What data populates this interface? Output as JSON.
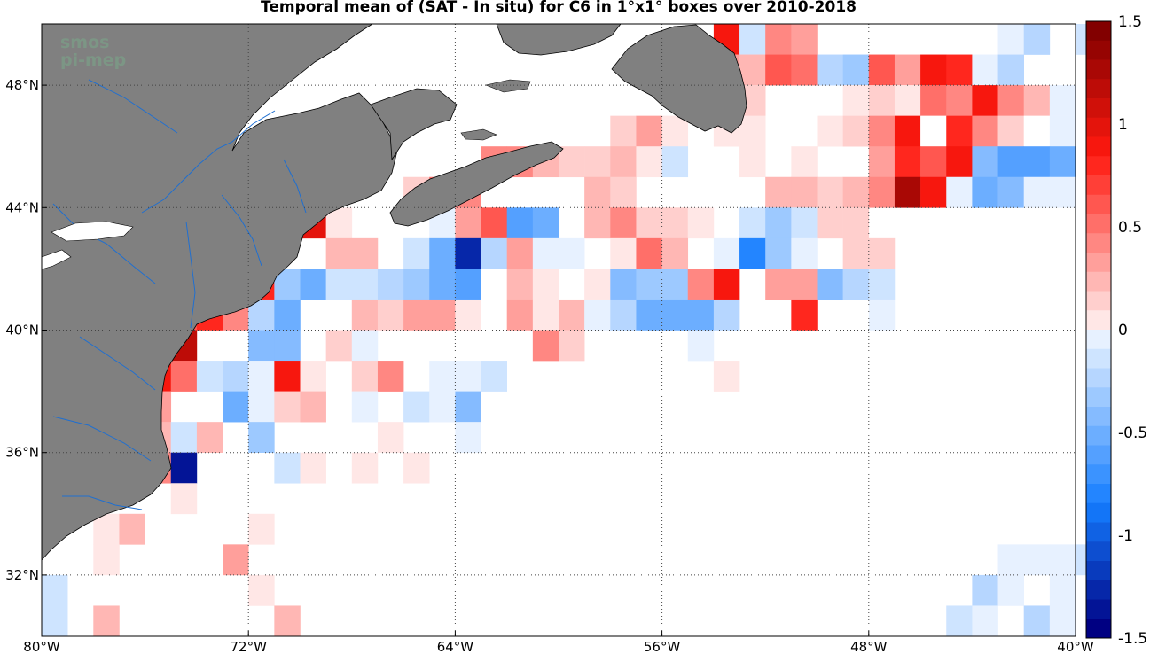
{
  "title": "Temporal mean of (SAT - In situ) for C6 in 1°x1° boxes over 2010-2018",
  "watermark": [
    "smos",
    "pi-mep"
  ],
  "colors": {
    "land": "#808080",
    "rivers": "#1f6fd0",
    "grid": "#444444"
  },
  "chart_data": {
    "type": "heatmap",
    "title": "Temporal mean of (SAT - In situ) for C6 in 1°x1° boxes over 2010-2018",
    "x_range": [
      -80,
      -40
    ],
    "y_range": [
      30,
      50
    ],
    "x_ticks": [
      {
        "v": -80,
        "label": "80°W"
      },
      {
        "v": -72,
        "label": "72°W"
      },
      {
        "v": -64,
        "label": "64°W"
      },
      {
        "v": -56,
        "label": "56°W"
      },
      {
        "v": -48,
        "label": "48°W"
      },
      {
        "v": -40,
        "label": "40°W"
      }
    ],
    "y_ticks": [
      {
        "v": 32,
        "label": "32°N"
      },
      {
        "v": 36,
        "label": "36°N"
      },
      {
        "v": 40,
        "label": "40°N"
      },
      {
        "v": 44,
        "label": "44°N"
      },
      {
        "v": 48,
        "label": "48°N"
      }
    ],
    "colorbar": {
      "range": [
        -1.5,
        1.5
      ],
      "ticks": [
        {
          "v": 1.5,
          "label": "1.5"
        },
        {
          "v": 1,
          "label": "1"
        },
        {
          "v": 0.5,
          "label": "0.5"
        },
        {
          "v": 0,
          "label": "0"
        },
        {
          "v": -0.5,
          "label": "-0.5"
        },
        {
          "v": -1,
          "label": "-1"
        },
        {
          "v": -1.5,
          "label": "-1.5"
        }
      ]
    },
    "cells": [
      [
        -54,
        49,
        0.9
      ],
      [
        -53,
        49,
        -0.2
      ],
      [
        -52,
        49,
        0.5
      ],
      [
        -51,
        49,
        0.4
      ],
      [
        -43,
        49,
        -0.1
      ],
      [
        -42,
        49,
        -0.3
      ],
      [
        -40,
        49,
        -0.2
      ],
      [
        -54,
        48,
        0.4
      ],
      [
        -53,
        48,
        0.3
      ],
      [
        -52,
        48,
        0.7
      ],
      [
        -51,
        48,
        0.6
      ],
      [
        -50,
        48,
        -0.3
      ],
      [
        -49,
        48,
        -0.4
      ],
      [
        -48,
        48,
        0.7
      ],
      [
        -47,
        48,
        0.4
      ],
      [
        -46,
        48,
        0.9
      ],
      [
        -45,
        48,
        0.8
      ],
      [
        -44,
        48,
        -0.1
      ],
      [
        -43,
        48,
        -0.3
      ],
      [
        -53,
        47,
        0.2
      ],
      [
        -49,
        47,
        0.1
      ],
      [
        -48,
        47,
        0.2
      ],
      [
        -47,
        47,
        0.1
      ],
      [
        -46,
        47,
        0.6
      ],
      [
        -45,
        47,
        0.5
      ],
      [
        -44,
        47,
        0.9
      ],
      [
        -43,
        47,
        0.5
      ],
      [
        -42,
        47,
        0.3
      ],
      [
        -41,
        47,
        -0.1
      ],
      [
        -58,
        46,
        0.2
      ],
      [
        -57,
        46,
        0.4
      ],
      [
        -56,
        46,
        0.1
      ],
      [
        -54,
        46,
        0.1
      ],
      [
        -53,
        46,
        0.1
      ],
      [
        -50,
        46,
        0.1
      ],
      [
        -49,
        46,
        0.2
      ],
      [
        -48,
        46,
        0.5
      ],
      [
        -47,
        46,
        0.9
      ],
      [
        -46,
        46,
        0.0
      ],
      [
        -45,
        46,
        0.8
      ],
      [
        -44,
        46,
        0.5
      ],
      [
        -43,
        46,
        0.2
      ],
      [
        -42,
        46,
        0.0
      ],
      [
        -41,
        46,
        -0.1
      ],
      [
        -63,
        45,
        0.5
      ],
      [
        -62,
        45,
        0.5
      ],
      [
        -61,
        45,
        0.3
      ],
      [
        -60,
        45,
        0.2
      ],
      [
        -59,
        45,
        0.2
      ],
      [
        -58,
        45,
        0.3
      ],
      [
        -57,
        45,
        0.1
      ],
      [
        -56,
        45,
        -0.2
      ],
      [
        -53,
        45,
        0.1
      ],
      [
        -51,
        45,
        0.1
      ],
      [
        -48,
        45,
        0.4
      ],
      [
        -47,
        45,
        0.8
      ],
      [
        -46,
        45,
        0.7
      ],
      [
        -45,
        45,
        0.9
      ],
      [
        -44,
        45,
        -0.5
      ],
      [
        -43,
        45,
        -0.7
      ],
      [
        -42,
        45,
        -0.7
      ],
      [
        -41,
        45,
        -0.6
      ],
      [
        -66,
        44,
        0.2
      ],
      [
        -65,
        44,
        0.6
      ],
      [
        -64,
        44,
        0.5
      ],
      [
        -59,
        44,
        0.3
      ],
      [
        -58,
        44,
        0.2
      ],
      [
        -52,
        44,
        0.3
      ],
      [
        -51,
        44,
        0.3
      ],
      [
        -50,
        44,
        0.2
      ],
      [
        -49,
        44,
        0.3
      ],
      [
        -48,
        44,
        0.5
      ],
      [
        -47,
        44,
        1.3
      ],
      [
        -46,
        44,
        0.9
      ],
      [
        -45,
        44,
        -0.1
      ],
      [
        -44,
        44,
        -0.6
      ],
      [
        -43,
        44,
        -0.5
      ],
      [
        -42,
        44,
        -0.1
      ],
      [
        -41,
        44,
        -0.1
      ],
      [
        -74,
        43,
        -0.6
      ],
      [
        -73,
        43,
        -0.3
      ],
      [
        -72,
        43,
        0.2
      ],
      [
        -70,
        43,
        1.0
      ],
      [
        -69,
        43,
        0.1
      ],
      [
        -65,
        43,
        -0.1
      ],
      [
        -64,
        43,
        0.4
      ],
      [
        -63,
        43,
        0.7
      ],
      [
        -62,
        43,
        -0.7
      ],
      [
        -61,
        43,
        -0.6
      ],
      [
        -59,
        43,
        0.3
      ],
      [
        -58,
        43,
        0.5
      ],
      [
        -57,
        43,
        0.2
      ],
      [
        -56,
        43,
        0.2
      ],
      [
        -55,
        43,
        0.1
      ],
      [
        -53,
        43,
        -0.2
      ],
      [
        -52,
        43,
        -0.4
      ],
      [
        -51,
        43,
        -0.2
      ],
      [
        -50,
        43,
        0.2
      ],
      [
        -49,
        43,
        0.2
      ],
      [
        -75,
        42,
        -0.8
      ],
      [
        -69,
        42,
        0.3
      ],
      [
        -68,
        42,
        0.3
      ],
      [
        -66,
        42,
        -0.2
      ],
      [
        -65,
        42,
        -0.6
      ],
      [
        -64,
        42,
        -1.3
      ],
      [
        -63,
        42,
        -0.3
      ],
      [
        -62,
        42,
        0.4
      ],
      [
        -61,
        42,
        -0.1
      ],
      [
        -60,
        42,
        -0.1
      ],
      [
        -58,
        42,
        0.1
      ],
      [
        -57,
        42,
        0.6
      ],
      [
        -56,
        42,
        0.3
      ],
      [
        -54,
        42,
        -0.1
      ],
      [
        -53,
        42,
        -0.8
      ],
      [
        -52,
        42,
        -0.4
      ],
      [
        -51,
        42,
        -0.1
      ],
      [
        -49,
        42,
        0.2
      ],
      [
        -48,
        42,
        0.2
      ],
      [
        -73,
        41,
        0.8
      ],
      [
        -72,
        41,
        0.8
      ],
      [
        -71,
        41,
        -0.4
      ],
      [
        -70,
        41,
        -0.6
      ],
      [
        -69,
        41,
        -0.2
      ],
      [
        -68,
        41,
        -0.2
      ],
      [
        -67,
        41,
        -0.3
      ],
      [
        -66,
        41,
        -0.4
      ],
      [
        -65,
        41,
        -0.6
      ],
      [
        -64,
        41,
        -0.7
      ],
      [
        -62,
        41,
        0.3
      ],
      [
        -61,
        41,
        0.1
      ],
      [
        -59,
        41,
        0.1
      ],
      [
        -58,
        41,
        -0.5
      ],
      [
        -57,
        41,
        -0.4
      ],
      [
        -56,
        41,
        -0.4
      ],
      [
        -55,
        41,
        0.5
      ],
      [
        -54,
        41,
        0.9
      ],
      [
        -52,
        41,
        0.4
      ],
      [
        -51,
        41,
        0.4
      ],
      [
        -50,
        41,
        -0.5
      ],
      [
        -49,
        41,
        -0.3
      ],
      [
        -48,
        41,
        -0.2
      ],
      [
        -77,
        40,
        0.4
      ],
      [
        -76,
        40,
        0.5
      ],
      [
        -75,
        40,
        0.7
      ],
      [
        -74,
        40,
        0.8
      ],
      [
        -73,
        40,
        0.5
      ],
      [
        -72,
        40,
        -0.3
      ],
      [
        -71,
        40,
        -0.6
      ],
      [
        -68,
        40,
        0.3
      ],
      [
        -67,
        40,
        0.2
      ],
      [
        -66,
        40,
        0.4
      ],
      [
        -65,
        40,
        0.4
      ],
      [
        -64,
        40,
        0.1
      ],
      [
        -62,
        40,
        0.4
      ],
      [
        -61,
        40,
        0.1
      ],
      [
        -60,
        40,
        0.3
      ],
      [
        -59,
        40,
        -0.1
      ],
      [
        -58,
        40,
        -0.3
      ],
      [
        -57,
        40,
        -0.6
      ],
      [
        -56,
        40,
        -0.6
      ],
      [
        -55,
        40,
        -0.6
      ],
      [
        -54,
        40,
        -0.3
      ],
      [
        -51,
        40,
        0.8
      ],
      [
        -48,
        40,
        -0.1
      ],
      [
        -75,
        39,
        1.2
      ],
      [
        -72,
        39,
        -0.5
      ],
      [
        -71,
        39,
        -0.5
      ],
      [
        -69,
        39,
        0.2
      ],
      [
        -68,
        39,
        -0.1
      ],
      [
        -61,
        39,
        0.5
      ],
      [
        -60,
        39,
        0.2
      ],
      [
        -55,
        39,
        -0.1
      ],
      [
        -76,
        38,
        0.9
      ],
      [
        -75,
        38,
        0.6
      ],
      [
        -74,
        38,
        -0.2
      ],
      [
        -73,
        38,
        -0.3
      ],
      [
        -72,
        38,
        -0.1
      ],
      [
        -71,
        38,
        0.9
      ],
      [
        -70,
        38,
        0.1
      ],
      [
        -68,
        38,
        0.2
      ],
      [
        -67,
        38,
        0.5
      ],
      [
        -65,
        38,
        -0.1
      ],
      [
        -64,
        38,
        -0.1
      ],
      [
        -63,
        38,
        -0.2
      ],
      [
        -54,
        38,
        0.1
      ],
      [
        -76,
        37,
        0.4
      ],
      [
        -73,
        37,
        -0.6
      ],
      [
        -72,
        37,
        -0.1
      ],
      [
        -71,
        37,
        0.2
      ],
      [
        -70,
        37,
        0.3
      ],
      [
        -68,
        37,
        -0.1
      ],
      [
        -66,
        37,
        -0.2
      ],
      [
        -65,
        37,
        -0.1
      ],
      [
        -64,
        37,
        -0.5
      ],
      [
        -76,
        36,
        0.3
      ],
      [
        -75,
        36,
        -0.2
      ],
      [
        -74,
        36,
        0.3
      ],
      [
        -72,
        36,
        -0.4
      ],
      [
        -67,
        36,
        0.1
      ],
      [
        -64,
        36,
        -0.1
      ],
      [
        -71,
        35,
        -0.2
      ],
      [
        -70,
        35,
        0.1
      ],
      [
        -68,
        35,
        0.1
      ],
      [
        -66,
        35,
        0.1
      ],
      [
        -76,
        35,
        0.5
      ],
      [
        -75,
        35,
        -1.4
      ],
      [
        -75,
        34,
        0.1
      ],
      [
        -78,
        33,
        0.1
      ],
      [
        -77,
        33,
        0.3
      ],
      [
        -72,
        33,
        0.1
      ],
      [
        -78,
        32,
        0.1
      ],
      [
        -73,
        32,
        0.4
      ],
      [
        -43,
        32,
        -0.1
      ],
      [
        -42,
        32,
        -0.1
      ],
      [
        -41,
        32,
        -0.1
      ],
      [
        -40,
        32,
        -0.2
      ],
      [
        -80,
        31,
        -0.2
      ],
      [
        -72,
        31,
        0.1
      ],
      [
        -44,
        31,
        -0.3
      ],
      [
        -43,
        31,
        -0.1
      ],
      [
        -41,
        31,
        -0.1
      ],
      [
        -80,
        30,
        -0.2
      ],
      [
        -78,
        30,
        0.3
      ],
      [
        -71,
        30,
        0.3
      ],
      [
        -45,
        30,
        -0.2
      ],
      [
        -44,
        30,
        -0.1
      ],
      [
        -42,
        30,
        -0.3
      ],
      [
        -41,
        30,
        -0.1
      ]
    ]
  }
}
